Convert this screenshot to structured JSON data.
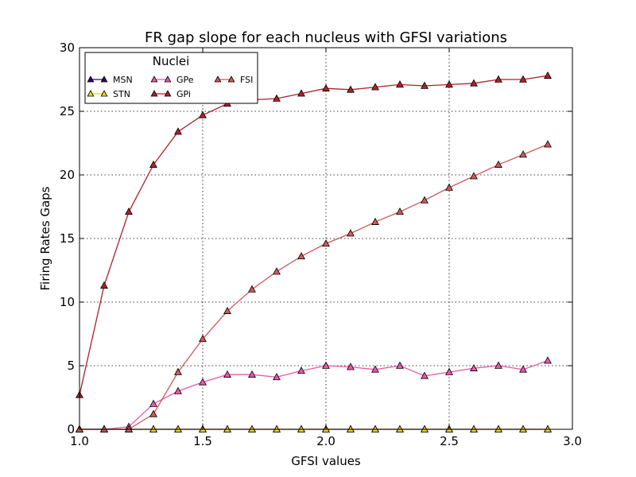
{
  "chart_data": {
    "type": "line",
    "title": "FR gap slope for each nucleus with GFSI variations",
    "xlabel": "GFSI values",
    "ylabel": "Firing Rates Gaps",
    "xlim": [
      1.0,
      3.0
    ],
    "ylim": [
      0,
      30
    ],
    "xticks": [
      "1.0",
      "1.5",
      "2.0",
      "2.5",
      "3.0"
    ],
    "yticks": [
      "0",
      "5",
      "10",
      "15",
      "20",
      "25",
      "30"
    ],
    "grid": true,
    "marker": "triangle",
    "legend": {
      "title": "Nuclei",
      "placement": "top-left",
      "order": [
        "MSN",
        "STN",
        "GPe",
        "GPi",
        "FSI"
      ]
    },
    "x": [
      1.0,
      1.1,
      1.2,
      1.3,
      1.4,
      1.5,
      1.6,
      1.7,
      1.8,
      1.9,
      2.0,
      2.1,
      2.2,
      2.3,
      2.4,
      2.5,
      2.6,
      2.7,
      2.8,
      2.9
    ],
    "series": [
      {
        "name": "MSN",
        "color": "#2e0a5e",
        "values": [
          0,
          0,
          0,
          0,
          0,
          0,
          0,
          0,
          0,
          0,
          0,
          0,
          0,
          0,
          0,
          0,
          0,
          0,
          0,
          0
        ]
      },
      {
        "name": "STN",
        "color": "#f5d316",
        "values": [
          0,
          0,
          0,
          0,
          0,
          0,
          0,
          0,
          0,
          0,
          0,
          0,
          0,
          0,
          0,
          0,
          0,
          0,
          0,
          0
        ]
      },
      {
        "name": "GPe",
        "color": "#e85aa8",
        "values": [
          0,
          0,
          0.2,
          2.0,
          3.0,
          3.7,
          4.3,
          4.3,
          4.1,
          4.6,
          5.0,
          4.9,
          4.7,
          5.0,
          4.2,
          4.5,
          4.8,
          5.0,
          4.7,
          5.4
        ]
      },
      {
        "name": "GPi",
        "color": "#b0202a",
        "values": [
          2.7,
          11.3,
          17.1,
          20.8,
          23.4,
          24.7,
          25.6,
          25.9,
          26.0,
          26.4,
          26.8,
          26.7,
          26.9,
          27.1,
          27.0,
          27.1,
          27.2,
          27.5,
          27.5,
          27.8
        ]
      },
      {
        "name": "FSI",
        "color": "#cd5b58",
        "values": [
          0,
          0,
          0,
          1.2,
          4.5,
          7.1,
          9.3,
          11.0,
          12.4,
          13.6,
          14.6,
          15.4,
          16.3,
          17.1,
          18.0,
          19.0,
          19.9,
          20.8,
          21.6,
          22.4
        ]
      }
    ]
  }
}
